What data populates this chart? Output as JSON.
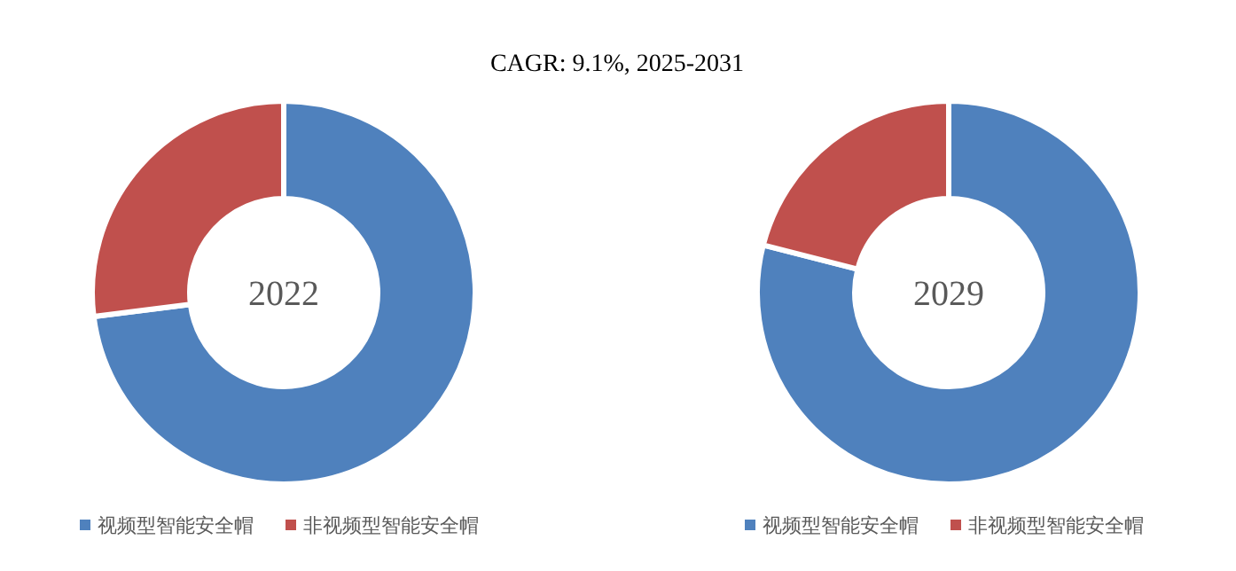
{
  "chart_data": [
    {
      "type": "donut",
      "title": "2022",
      "annotations": [
        "CAGR: 9.1%, 2025-2031"
      ],
      "categories": [
        "视频型智能安全帽",
        "非视频型智能安全帽"
      ],
      "values": [
        73,
        27
      ],
      "colors": [
        "#4f81bd",
        "#c0504d"
      ],
      "legend": "bottom"
    },
    {
      "type": "donut",
      "title": "2029",
      "categories": [
        "视频型智能安全帽",
        "非视频型智能安全帽"
      ],
      "values": [
        79,
        21
      ],
      "colors": [
        "#4f81bd",
        "#c0504d"
      ],
      "legend": "bottom"
    }
  ]
}
